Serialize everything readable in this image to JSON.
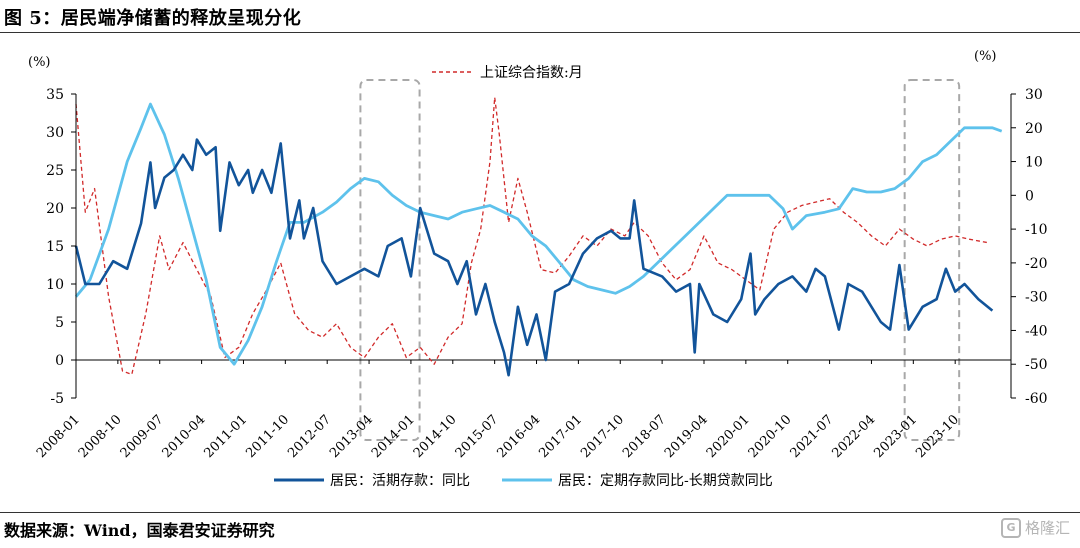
{
  "header": {
    "figure_label": "图 5：",
    "title": "居民端净储蓄的释放呈现分化"
  },
  "footer": {
    "source": "数据来源：Wind，国泰君安证券研究",
    "watermark": "格隆汇",
    "watermark_icon": "glh-logo-icon"
  },
  "colors": {
    "demand": "#12549a",
    "timespread": "#5ec2ec",
    "sh_index": "#d12a2a",
    "box": "#a8a8a8"
  },
  "chart_data": {
    "type": "line",
    "left_unit": "(%)",
    "right_unit": "(%)",
    "left_ylim": [
      -5,
      35
    ],
    "right_ylim": [
      -60,
      30
    ],
    "left_ticks": [
      -5,
      0,
      5,
      10,
      15,
      20,
      25,
      30,
      35
    ],
    "right_ticks": [
      -60,
      -50,
      -40,
      -30,
      -20,
      -10,
      0,
      10,
      20,
      30
    ],
    "x_tick_labels": [
      "2008-01",
      "2008-10",
      "2009-07",
      "2010-04",
      "2011-01",
      "2011-10",
      "2012-07",
      "2013-04",
      "2014-01",
      "2014-10",
      "2015-07",
      "2016-04",
      "2017-01",
      "2017-10",
      "2018-07",
      "2019-04",
      "2020-01",
      "2020-10",
      "2021-07",
      "2022-04",
      "2023-01",
      "2023-10"
    ],
    "highlight_ranges": [
      [
        "2013-03",
        "2014-02"
      ],
      [
        "2022-12",
        "2023-10"
      ]
    ],
    "legend": {
      "demand": "居民：活期存款：同比",
      "timespread": "居民：定期存款同比-长期贷款同比",
      "sh_index": "上证综合指数:月"
    },
    "series": [
      {
        "name": "居民：活期存款：同比",
        "axis": "left",
        "style": "solid",
        "points": [
          [
            "2008-01",
            15
          ],
          [
            "2008-03",
            10
          ],
          [
            "2008-06",
            10
          ],
          [
            "2008-09",
            13
          ],
          [
            "2008-12",
            12
          ],
          [
            "2009-03",
            18
          ],
          [
            "2009-05",
            26
          ],
          [
            "2009-06",
            20
          ],
          [
            "2009-08",
            24
          ],
          [
            "2009-10",
            25
          ],
          [
            "2009-12",
            27
          ],
          [
            "2010-02",
            25
          ],
          [
            "2010-03",
            29
          ],
          [
            "2010-05",
            27
          ],
          [
            "2010-07",
            28
          ],
          [
            "2010-08",
            17
          ],
          [
            "2010-10",
            26
          ],
          [
            "2010-12",
            23
          ],
          [
            "2011-02",
            25
          ],
          [
            "2011-03",
            22
          ],
          [
            "2011-05",
            25
          ],
          [
            "2011-07",
            22
          ],
          [
            "2011-09",
            28.5
          ],
          [
            "2011-11",
            16
          ],
          [
            "2012-01",
            21
          ],
          [
            "2012-02",
            16
          ],
          [
            "2012-04",
            20
          ],
          [
            "2012-06",
            13
          ],
          [
            "2012-09",
            10
          ],
          [
            "2012-12",
            11
          ],
          [
            "2013-03",
            12
          ],
          [
            "2013-06",
            11
          ],
          [
            "2013-08",
            15
          ],
          [
            "2013-11",
            16
          ],
          [
            "2014-01",
            11
          ],
          [
            "2014-03",
            20
          ],
          [
            "2014-06",
            14
          ],
          [
            "2014-09",
            13
          ],
          [
            "2014-11",
            10
          ],
          [
            "2015-01",
            13
          ],
          [
            "2015-03",
            6
          ],
          [
            "2015-05",
            10
          ],
          [
            "2015-07",
            5
          ],
          [
            "2015-09",
            1
          ],
          [
            "2015-10",
            -2
          ],
          [
            "2015-12",
            7
          ],
          [
            "2016-02",
            2
          ],
          [
            "2016-04",
            6
          ],
          [
            "2016-06",
            0
          ],
          [
            "2016-08",
            9
          ],
          [
            "2016-11",
            10
          ],
          [
            "2017-02",
            14
          ],
          [
            "2017-05",
            16
          ],
          [
            "2017-08",
            17
          ],
          [
            "2017-10",
            16
          ],
          [
            "2017-12",
            16
          ],
          [
            "2018-01",
            21
          ],
          [
            "2018-03",
            12
          ],
          [
            "2018-07",
            11
          ],
          [
            "2018-10",
            9
          ],
          [
            "2019-01",
            10
          ],
          [
            "2019-02",
            1
          ],
          [
            "2019-03",
            10
          ],
          [
            "2019-06",
            6
          ],
          [
            "2019-09",
            5
          ],
          [
            "2019-12",
            8
          ],
          [
            "2020-02",
            14
          ],
          [
            "2020-03",
            6
          ],
          [
            "2020-05",
            8
          ],
          [
            "2020-08",
            10
          ],
          [
            "2020-11",
            11
          ],
          [
            "2021-02",
            9
          ],
          [
            "2021-04",
            12
          ],
          [
            "2021-06",
            11
          ],
          [
            "2021-09",
            4
          ],
          [
            "2021-11",
            10
          ],
          [
            "2022-02",
            9
          ],
          [
            "2022-06",
            5
          ],
          [
            "2022-08",
            4
          ],
          [
            "2022-10",
            12.5
          ],
          [
            "2022-12",
            4
          ],
          [
            "2023-03",
            7
          ],
          [
            "2023-06",
            8
          ],
          [
            "2023-08",
            12
          ],
          [
            "2023-10",
            9
          ],
          [
            "2023-12",
            10
          ],
          [
            "2024-03",
            8
          ],
          [
            "2024-06",
            6.5
          ]
        ]
      },
      {
        "name": "居民：定期存款同比-长期贷款同比",
        "axis": "right",
        "style": "solid",
        "points": [
          [
            "2008-01",
            -30
          ],
          [
            "2008-04",
            -25
          ],
          [
            "2008-08",
            -10
          ],
          [
            "2008-12",
            10
          ],
          [
            "2009-03",
            20
          ],
          [
            "2009-05",
            27
          ],
          [
            "2009-08",
            18
          ],
          [
            "2009-11",
            5
          ],
          [
            "2010-02",
            -10
          ],
          [
            "2010-05",
            -25
          ],
          [
            "2010-08",
            -45
          ],
          [
            "2010-11",
            -50
          ],
          [
            "2011-02",
            -43
          ],
          [
            "2011-05",
            -33
          ],
          [
            "2011-08",
            -20
          ],
          [
            "2011-11",
            -8
          ],
          [
            "2012-02",
            -8
          ],
          [
            "2012-06",
            -5
          ],
          [
            "2012-09",
            -2
          ],
          [
            "2012-12",
            2
          ],
          [
            "2013-03",
            5
          ],
          [
            "2013-06",
            4
          ],
          [
            "2013-09",
            0
          ],
          [
            "2013-12",
            -3
          ],
          [
            "2014-03",
            -5
          ],
          [
            "2014-06",
            -6
          ],
          [
            "2014-09",
            -7
          ],
          [
            "2014-12",
            -5
          ],
          [
            "2015-03",
            -4
          ],
          [
            "2015-06",
            -3
          ],
          [
            "2015-09",
            -5
          ],
          [
            "2015-12",
            -7
          ],
          [
            "2016-03",
            -12
          ],
          [
            "2016-06",
            -15
          ],
          [
            "2016-09",
            -20
          ],
          [
            "2016-12",
            -25
          ],
          [
            "2017-03",
            -27
          ],
          [
            "2017-06",
            -28
          ],
          [
            "2017-09",
            -29
          ],
          [
            "2017-12",
            -27
          ],
          [
            "2018-03",
            -24
          ],
          [
            "2018-06",
            -20
          ],
          [
            "2018-09",
            -16
          ],
          [
            "2018-12",
            -12
          ],
          [
            "2019-03",
            -8
          ],
          [
            "2019-06",
            -4
          ],
          [
            "2019-09",
            0
          ],
          [
            "2019-12",
            0
          ],
          [
            "2020-03",
            0
          ],
          [
            "2020-06",
            0
          ],
          [
            "2020-09",
            -4
          ],
          [
            "2020-11",
            -10
          ],
          [
            "2021-02",
            -6
          ],
          [
            "2021-06",
            -5
          ],
          [
            "2021-09",
            -4
          ],
          [
            "2021-12",
            2
          ],
          [
            "2022-03",
            1
          ],
          [
            "2022-06",
            1
          ],
          [
            "2022-09",
            2
          ],
          [
            "2022-12",
            5
          ],
          [
            "2023-03",
            10
          ],
          [
            "2023-06",
            12
          ],
          [
            "2023-09",
            16
          ],
          [
            "2023-12",
            20
          ],
          [
            "2024-03",
            20
          ],
          [
            "2024-06",
            20
          ],
          [
            "2024-08",
            19
          ]
        ]
      },
      {
        "name": "上证综合指数:月",
        "axis": "right",
        "style": "dashed",
        "points": [
          [
            "2008-01",
            27
          ],
          [
            "2008-03",
            -5
          ],
          [
            "2008-05",
            2
          ],
          [
            "2008-08",
            -30
          ],
          [
            "2008-11",
            -52
          ],
          [
            "2009-01",
            -53
          ],
          [
            "2009-04",
            -35
          ],
          [
            "2009-07",
            -12
          ],
          [
            "2009-09",
            -22
          ],
          [
            "2009-12",
            -14
          ],
          [
            "2010-03",
            -22
          ],
          [
            "2010-06",
            -30
          ],
          [
            "2010-09",
            -48
          ],
          [
            "2010-12",
            -45
          ],
          [
            "2011-03",
            -35
          ],
          [
            "2011-06",
            -28
          ],
          [
            "2011-09",
            -20
          ],
          [
            "2011-12",
            -35
          ],
          [
            "2012-03",
            -40
          ],
          [
            "2012-06",
            -42
          ],
          [
            "2012-09",
            -38
          ],
          [
            "2012-12",
            -45
          ],
          [
            "2013-03",
            -48
          ],
          [
            "2013-06",
            -42
          ],
          [
            "2013-09",
            -38
          ],
          [
            "2013-12",
            -48
          ],
          [
            "2014-03",
            -45
          ],
          [
            "2014-06",
            -50
          ],
          [
            "2014-09",
            -42
          ],
          [
            "2014-12",
            -38
          ],
          [
            "2015-02",
            -20
          ],
          [
            "2015-04",
            -10
          ],
          [
            "2015-06",
            10
          ],
          [
            "2015-07",
            29
          ],
          [
            "2015-08",
            18
          ],
          [
            "2015-10",
            -8
          ],
          [
            "2015-12",
            5
          ],
          [
            "2016-02",
            -5
          ],
          [
            "2016-05",
            -22
          ],
          [
            "2016-08",
            -23
          ],
          [
            "2016-11",
            -18
          ],
          [
            "2017-02",
            -12
          ],
          [
            "2017-05",
            -15
          ],
          [
            "2017-08",
            -10
          ],
          [
            "2017-11",
            -12
          ],
          [
            "2018-01",
            -8
          ],
          [
            "2018-04",
            -12
          ],
          [
            "2018-07",
            -20
          ],
          [
            "2018-10",
            -25
          ],
          [
            "2019-01",
            -22
          ],
          [
            "2019-04",
            -12
          ],
          [
            "2019-07",
            -20
          ],
          [
            "2019-10",
            -22
          ],
          [
            "2020-01",
            -25
          ],
          [
            "2020-04",
            -28
          ],
          [
            "2020-07",
            -10
          ],
          [
            "2020-10",
            -5
          ],
          [
            "2021-01",
            -3
          ],
          [
            "2021-04",
            -2
          ],
          [
            "2021-07",
            -1
          ],
          [
            "2021-10",
            -5
          ],
          [
            "2022-01",
            -8
          ],
          [
            "2022-04",
            -12
          ],
          [
            "2022-07",
            -15
          ],
          [
            "2022-10",
            -10
          ],
          [
            "2023-01",
            -13
          ],
          [
            "2023-04",
            -15
          ],
          [
            "2023-07",
            -13
          ],
          [
            "2023-10",
            -12
          ],
          [
            "2024-01",
            -13
          ],
          [
            "2024-05",
            -14
          ]
        ]
      }
    ]
  }
}
